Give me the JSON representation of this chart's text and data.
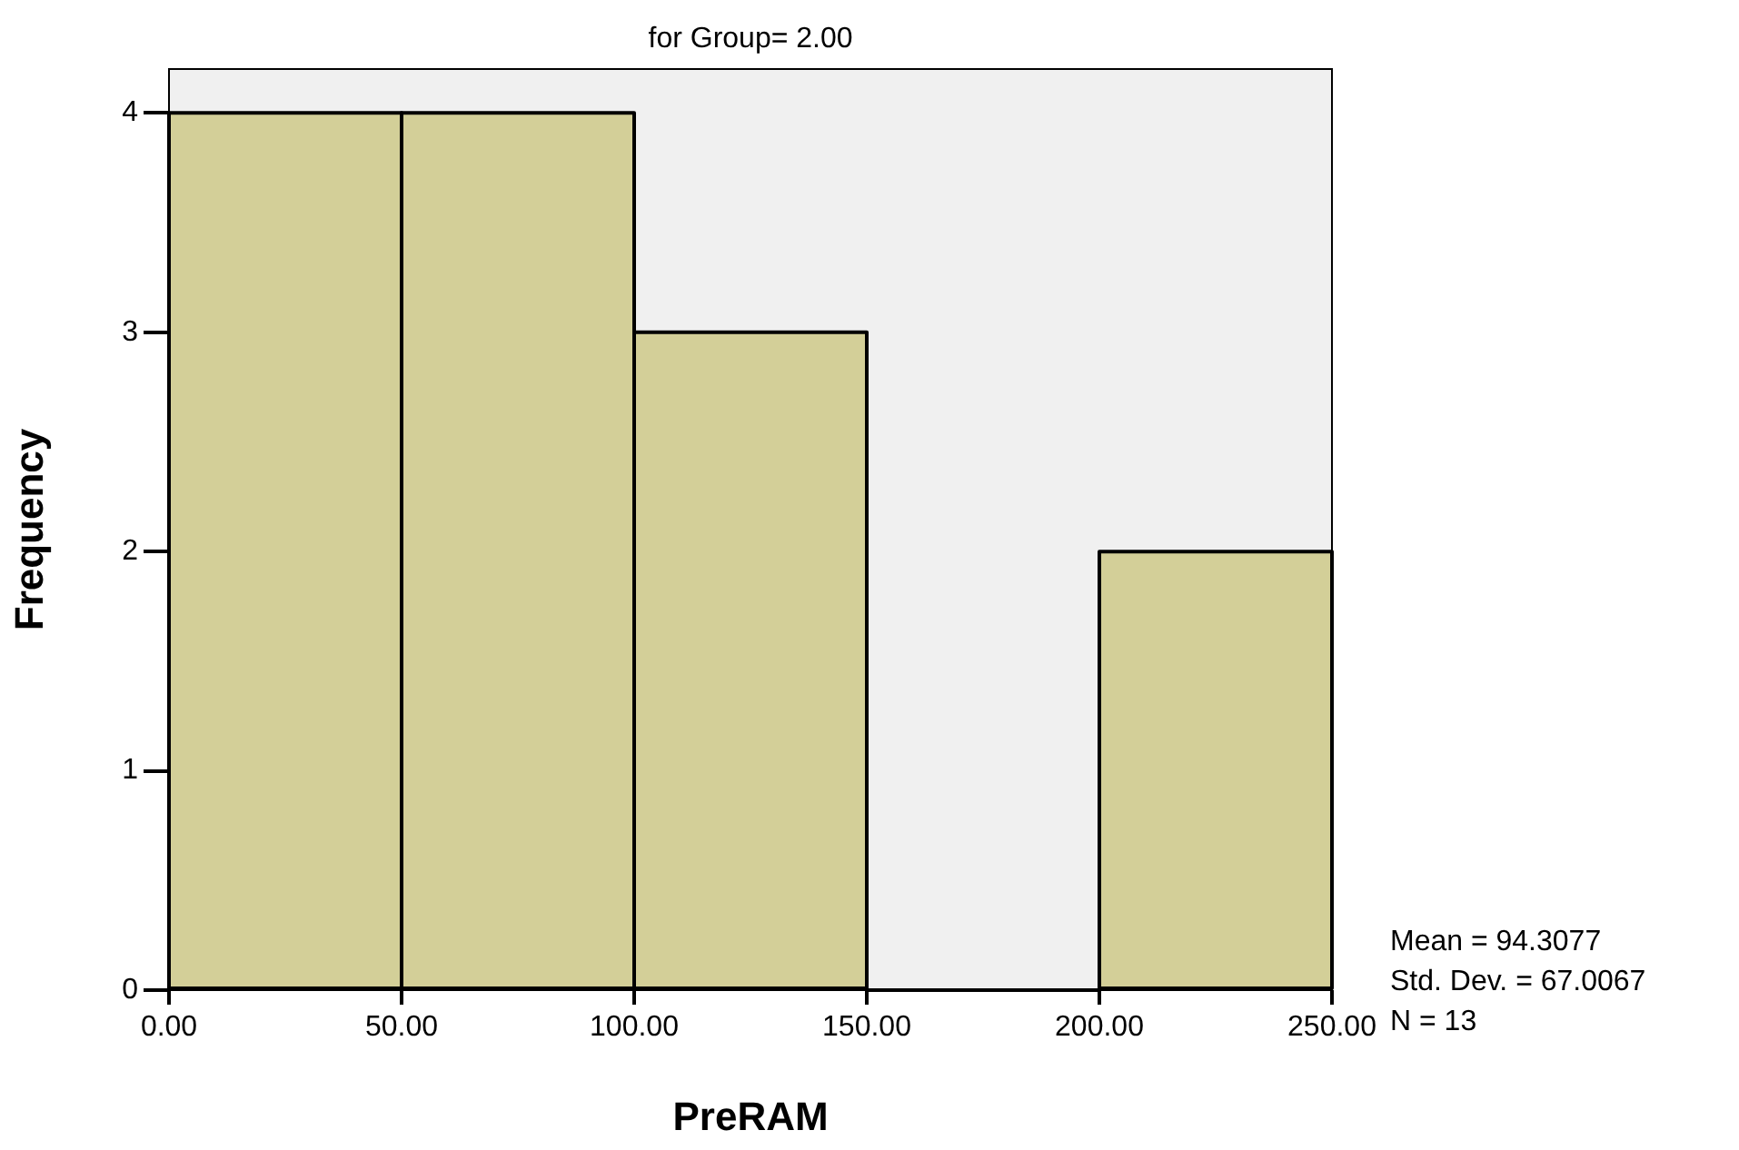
{
  "chart_data": {
    "type": "histogram",
    "title": "for Group= 2.00",
    "xlabel": "PreRAM",
    "ylabel": "Frequency",
    "bins": [
      0,
      50,
      100,
      150,
      200,
      250
    ],
    "values": [
      4,
      4,
      3,
      0,
      2
    ],
    "color": "#d3cf98",
    "xlim": [
      0,
      250
    ],
    "xticks": [
      {
        "value": 0,
        "label": "0.00"
      },
      {
        "value": 50,
        "label": "50.00"
      },
      {
        "value": 100,
        "label": "100.00"
      },
      {
        "value": 150,
        "label": "150.00"
      },
      {
        "value": 200,
        "label": "200.00"
      },
      {
        "value": 250,
        "label": "250.00"
      }
    ],
    "ylim": [
      0,
      4.2
    ],
    "yticks": [
      0,
      1,
      2,
      3,
      4
    ],
    "grid": false,
    "legend": false,
    "annotations": [
      "Mean = 94.3077",
      "Std. Dev. = 67.0067",
      "N = 13"
    ]
  }
}
